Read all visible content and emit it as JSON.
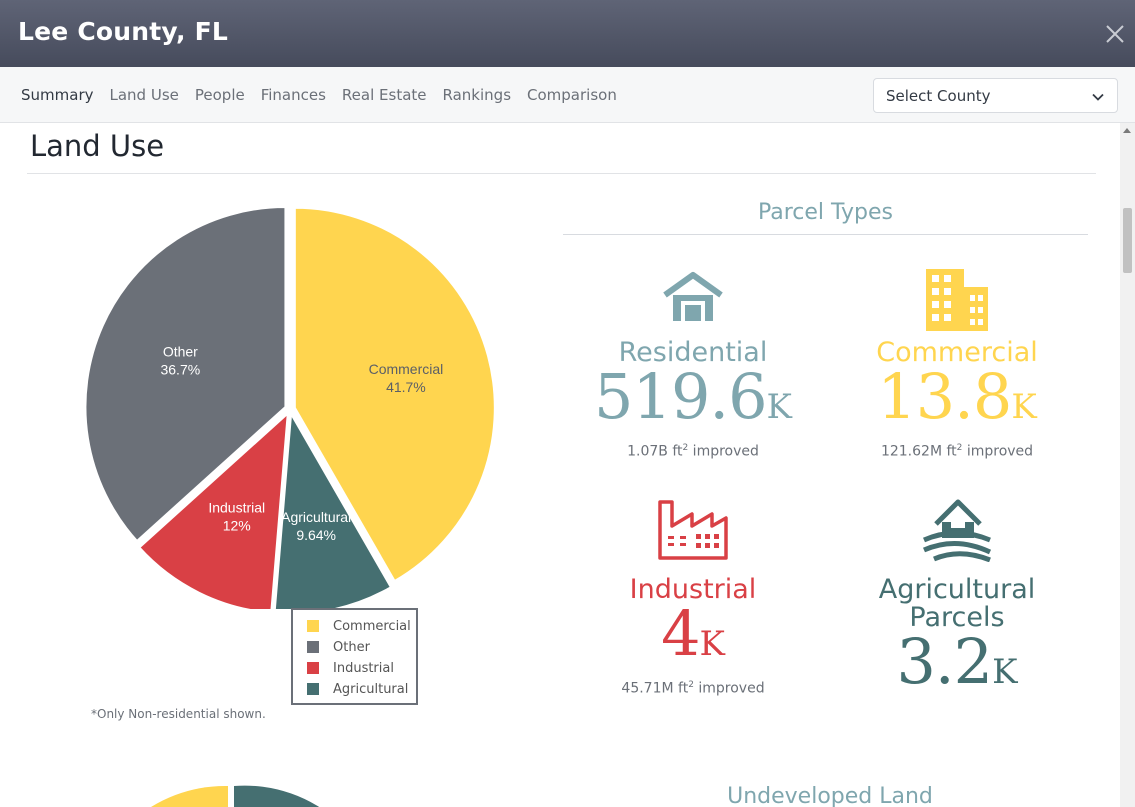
{
  "window": {
    "title": "Lee County, FL"
  },
  "nav": {
    "tabs": [
      "Summary",
      "Land Use",
      "People",
      "Finances",
      "Real Estate",
      "Rankings",
      "Comparison"
    ],
    "active_tab": "Summary",
    "county_select": {
      "value": "Select County"
    }
  },
  "land_use": {
    "title": "Land Use",
    "footnote": "*Only Non-residential shown.",
    "chart_data": {
      "type": "pie",
      "slices": [
        {
          "name": "Commercial",
          "percent": 41.7,
          "label": "41.7%",
          "color": "#ffd54f"
        },
        {
          "name": "Agricultural",
          "percent": 9.64,
          "label": "9.64%",
          "color": "#456f71"
        },
        {
          "name": "Industrial",
          "percent": 12,
          "label": "12%",
          "color": "#d94045"
        },
        {
          "name": "Other",
          "percent": 36.7,
          "label": "36.7%",
          "color": "#6b7078"
        }
      ],
      "legend": [
        "Commercial",
        "Other",
        "Industrial",
        "Agricultural"
      ],
      "legend_placement": "bottom-right"
    }
  },
  "parcel_types": {
    "title": "Parcel Types",
    "cards": [
      {
        "label": "Residential",
        "value": "519.6",
        "unit": "K",
        "sub_value": "1.07B ft",
        "sub_sup": "2",
        "sub_suffix": " improved",
        "color": "#7fa6ae",
        "icon": "house-icon"
      },
      {
        "label": "Commercial",
        "value": "13.8",
        "unit": "K",
        "sub_value": "121.62M ft",
        "sub_sup": "2",
        "sub_suffix": " improved",
        "color": "#ffd54f",
        "icon": "building-icon"
      },
      {
        "label": "Industrial",
        "value": "4",
        "unit": "K",
        "sub_value": "45.71M ft",
        "sub_sup": "2",
        "sub_suffix": " improved",
        "color": "#d94045",
        "icon": "factory-icon"
      },
      {
        "label_line1": "Agricultural",
        "label_line2": "Parcels",
        "value": "3.2",
        "unit": "K",
        "color": "#456f71",
        "icon": "barn-icon"
      }
    ]
  },
  "undeveloped": {
    "title": "Undeveloped Land"
  }
}
